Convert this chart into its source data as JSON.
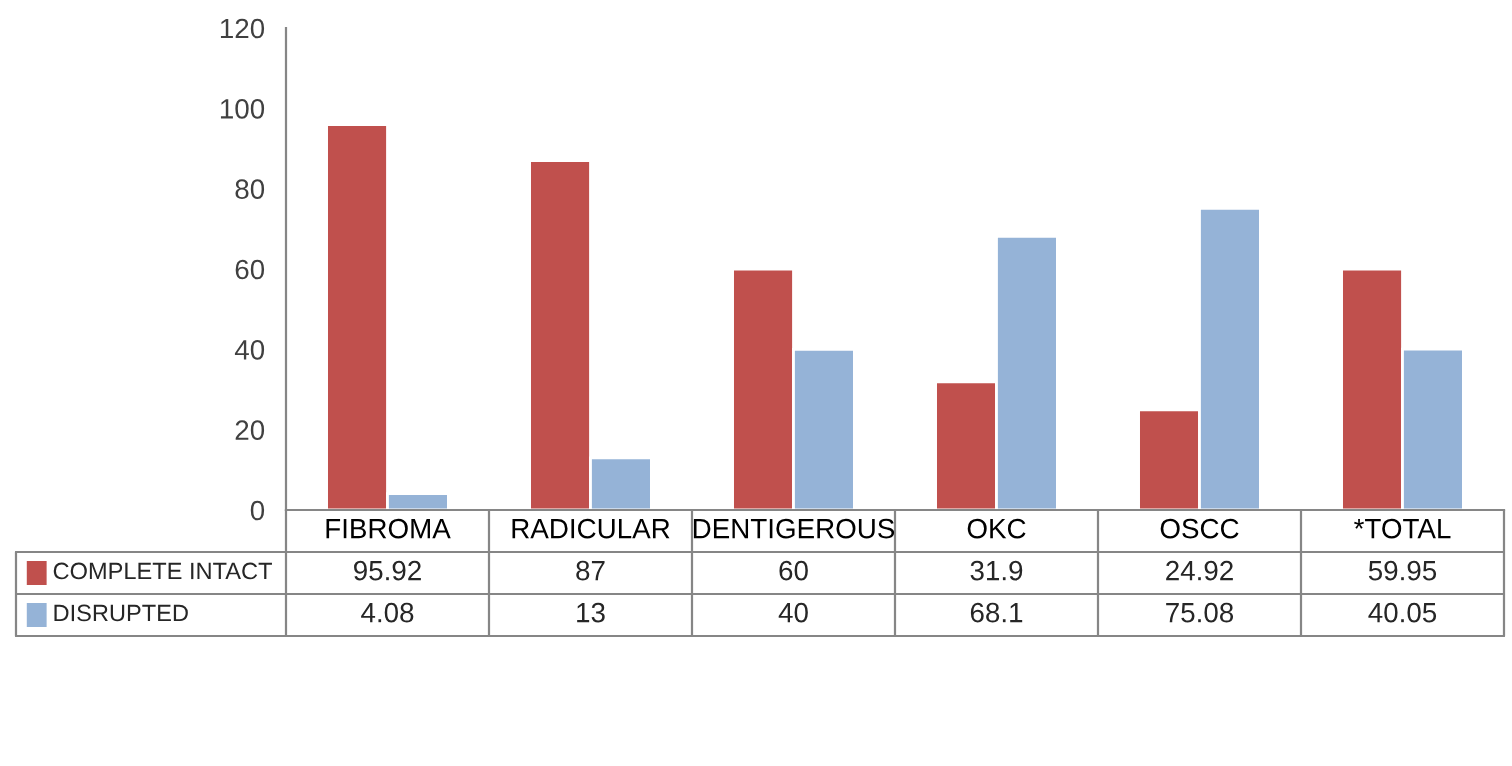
{
  "chart_data": {
    "type": "bar",
    "categories": [
      "FIBROMA",
      "RADICULAR",
      "DENTIGEROUS",
      "OKC",
      "OSCC",
      "*TOTAL"
    ],
    "series": [
      {
        "name": "COMPLETE INTACT",
        "color": "#c0504d",
        "values": [
          95.92,
          87,
          60,
          31.9,
          24.92,
          59.95
        ]
      },
      {
        "name": "DISRUPTED",
        "color": "#95b3d7",
        "values": [
          4.08,
          13,
          40,
          68.1,
          75.08,
          40.05
        ]
      }
    ],
    "ylim": [
      0,
      120
    ],
    "yticks": [
      0,
      20,
      40,
      60,
      80,
      100,
      120
    ],
    "grid": false,
    "legend": "bottom",
    "data_labels": true
  }
}
